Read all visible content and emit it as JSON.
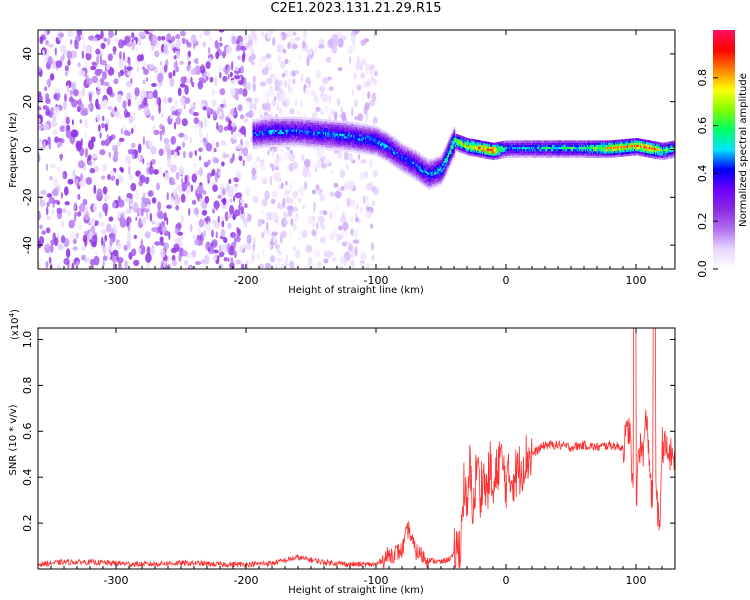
{
  "title": "C2E1.2023.131.21.29.R15",
  "colorbar": {
    "label": "Normalized spectral amplitude",
    "ticks": [
      "0.0",
      "0.2",
      "0.4",
      "0.6",
      "0.8"
    ],
    "tick_values": [
      0.0,
      0.2,
      0.4,
      0.6,
      0.8
    ],
    "range": [
      0,
      1
    ],
    "colormap": [
      "#ffffff",
      "#e8d6ff",
      "#b070f0",
      "#8a2be2",
      "#6a00ff",
      "#0000ff",
      "#00e5ff",
      "#00ff60",
      "#80ff00",
      "#ffff00",
      "#ff8000",
      "#ff0000",
      "#ff1060"
    ]
  },
  "chart_data": [
    {
      "type": "heatmap",
      "xlabel": "Height of straight line (km)",
      "ylabel": "Frequency (Hz)",
      "xlim": [
        -360,
        130
      ],
      "ylim": [
        -50,
        50
      ],
      "x_ticks": [
        -300,
        -200,
        -100,
        0,
        100
      ],
      "x_tick_labels": [
        "-300",
        "-200",
        "-100",
        "0",
        "100"
      ],
      "y_ticks": [
        -40,
        -20,
        0,
        20,
        40
      ],
      "y_tick_labels": [
        "-40",
        "-20",
        "0",
        "20",
        "40"
      ],
      "ridge": {
        "x": [
          -195,
          -180,
          -160,
          -140,
          -120,
          -100,
          -90,
          -80,
          -70,
          -60,
          -50,
          -40,
          -30,
          -20,
          -10,
          0,
          20,
          40,
          60,
          80,
          100,
          110,
          120,
          130
        ],
        "y": [
          7,
          8,
          8,
          7,
          6,
          4,
          1,
          -3,
          -6,
          -10,
          -8,
          4,
          2,
          1,
          0,
          1,
          1,
          1,
          1,
          1,
          2,
          1,
          0,
          1
        ],
        "amplitude": [
          0.45,
          0.5,
          0.45,
          0.5,
          0.5,
          0.5,
          0.5,
          0.45,
          0.5,
          0.5,
          0.55,
          0.7,
          0.8,
          0.9,
          0.95,
          0.5,
          0.55,
          0.6,
          0.6,
          0.85,
          0.9,
          0.95,
          0.7,
          0.6
        ]
      },
      "noise_regions": [
        {
          "x": [
            -360,
            -200
          ],
          "y": [
            -50,
            50
          ],
          "amplitude": 0.1
        },
        {
          "x": [
            -200,
            -100
          ],
          "y": [
            -50,
            50
          ],
          "amplitude": 0.05
        }
      ]
    },
    {
      "type": "line",
      "xlabel": "Height of straight line (km)",
      "ylabel": "SNR (10 * v/v)",
      "y_multiplier": "(x10",
      "y_multiplier_exp": "4",
      "y_multiplier_close": ")",
      "xlim": [
        -360,
        130
      ],
      "ylim": [
        0,
        1.05
      ],
      "x_ticks": [
        -300,
        -200,
        -100,
        0,
        100
      ],
      "x_tick_labels": [
        "-300",
        "-200",
        "-100",
        "0",
        "100"
      ],
      "y_ticks": [
        0.2,
        0.4,
        0.6,
        0.8,
        1.0
      ],
      "y_tick_labels": [
        "0.2",
        "0.4",
        "0.6",
        "0.8",
        "1.0"
      ],
      "series": [
        {
          "color": "#ff3030",
          "x": [
            -360,
            -340,
            -320,
            -300,
            -280,
            -260,
            -240,
            -220,
            -200,
            -180,
            -160,
            -140,
            -120,
            -110,
            -100,
            -90,
            -80,
            -75,
            -70,
            -60,
            -50,
            -45,
            -40,
            -35,
            -32,
            -30,
            -28,
            -25,
            -22,
            -20,
            -18,
            -15,
            -12,
            -10,
            -5,
            0,
            5,
            10,
            15,
            20,
            25,
            30,
            40,
            50,
            60,
            70,
            80,
            90,
            95,
            98,
            100,
            102,
            105,
            108,
            110,
            112,
            115,
            118,
            120,
            125,
            130
          ],
          "y": [
            0.02,
            0.03,
            0.03,
            0.025,
            0.02,
            0.025,
            0.025,
            0.02,
            0.02,
            0.025,
            0.05,
            0.03,
            0.02,
            0.02,
            0.02,
            0.06,
            0.08,
            0.18,
            0.08,
            0.04,
            0.03,
            0.04,
            0.06,
            0.1,
            0.4,
            0.2,
            0.45,
            0.25,
            0.5,
            0.3,
            0.42,
            0.33,
            0.45,
            0.3,
            0.5,
            0.38,
            0.4,
            0.43,
            0.48,
            0.5,
            0.52,
            0.54,
            0.54,
            0.53,
            0.54,
            0.53,
            0.54,
            0.53,
            0.62,
            0.3,
            0.2,
            0.55,
            0.5,
            0.65,
            0.52,
            0.3,
            0.45,
            0.12,
            0.55,
            0.5,
            0.48
          ]
        }
      ]
    }
  ]
}
